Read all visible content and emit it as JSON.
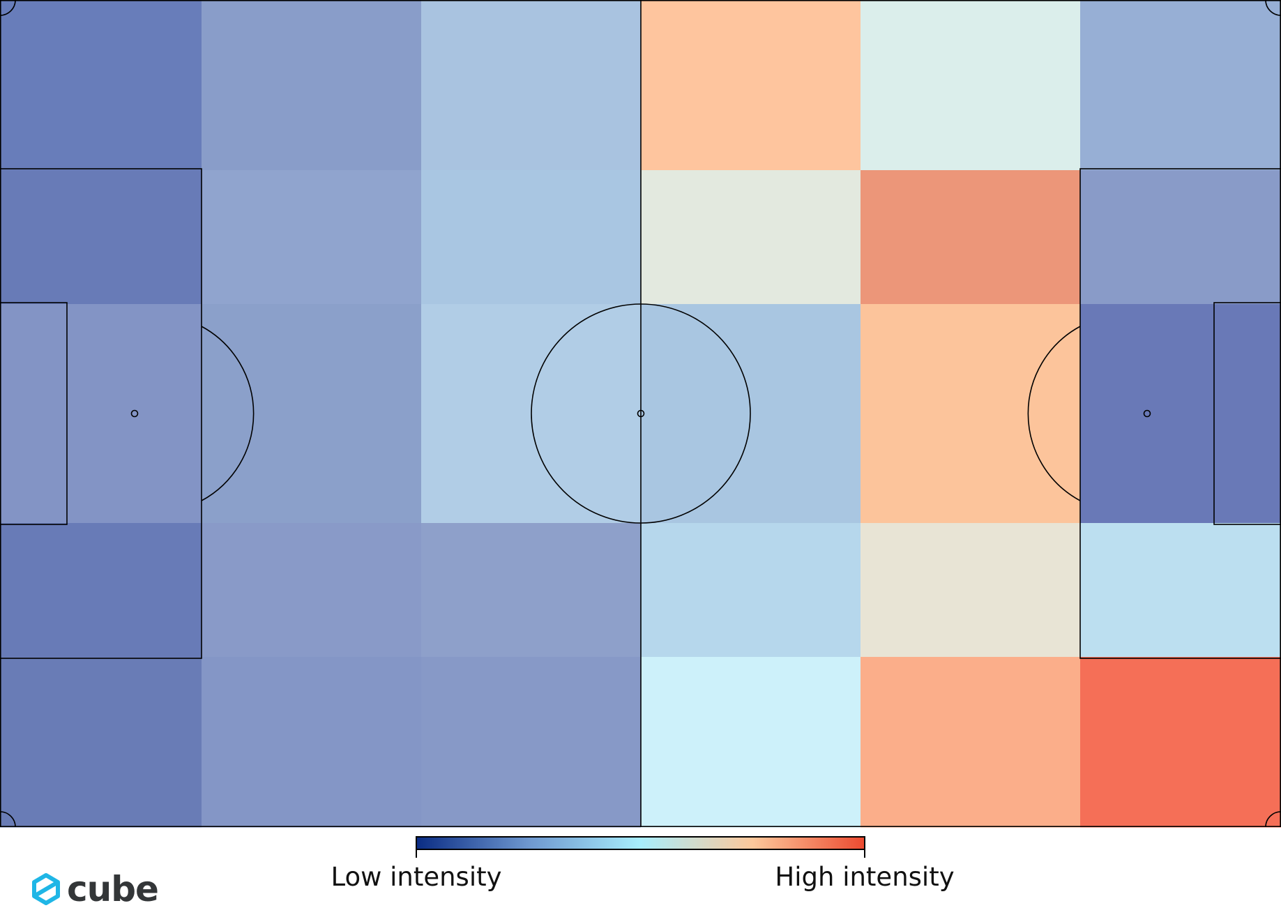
{
  "chart_data": {
    "type": "heatmap",
    "title": "",
    "grid_columns": 6,
    "grid_rows": 5,
    "color_scale": {
      "stops": [
        "#0a2c84",
        "#6e97cf",
        "#a8eefc",
        "#fdc89b",
        "#ec4a30"
      ],
      "min_label": "Low intensity",
      "max_label": "High intensity"
    },
    "cells": [
      [
        "#687dba",
        "#899dc9",
        "#a9c3e0",
        "#fec59e",
        "#dbeeeb",
        "#97afd5"
      ],
      [
        "#687bb7",
        "#90a4ce",
        "#a9c6e2",
        "#e3e9df",
        "#ec9679",
        "#899bc8"
      ],
      [
        "#8394c5",
        "#8ba0ca",
        "#b1cde6",
        "#a9c6e1",
        "#fcc49b",
        "#6979b7"
      ],
      [
        "#687bb7",
        "#899ac8",
        "#8ea0ca",
        "#b6d7ec",
        "#e8e4d5",
        "#bcdff0"
      ],
      [
        "#697cb6",
        "#8496c6",
        "#8799c7",
        "#cdf1fa",
        "#fbae8a",
        "#f56f57"
      ]
    ],
    "intensity": [
      [
        0.13,
        0.24,
        0.34,
        0.64,
        0.5,
        0.28
      ],
      [
        0.13,
        0.26,
        0.35,
        0.52,
        0.78,
        0.24
      ],
      [
        0.21,
        0.25,
        0.38,
        0.35,
        0.64,
        0.13
      ],
      [
        0.13,
        0.24,
        0.25,
        0.4,
        0.55,
        0.42
      ],
      [
        0.13,
        0.22,
        0.23,
        0.47,
        0.7,
        0.9
      ]
    ],
    "pitch": {
      "markings": [
        "center-line",
        "center-circle",
        "penalty-areas",
        "goal-areas",
        "penalty-spots",
        "penalty-arcs",
        "corner-arcs"
      ]
    }
  },
  "logo": {
    "text": "cube",
    "icon": "cube-logo-icon",
    "color": "#1fb6e6",
    "text_color": "#333638"
  }
}
